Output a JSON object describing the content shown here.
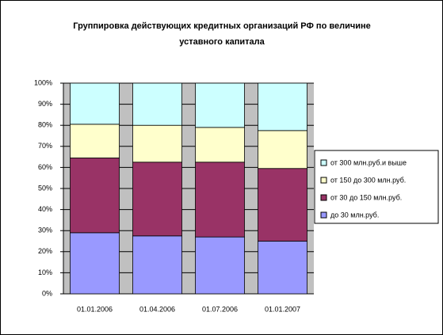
{
  "chart_data": {
    "type": "stacked_bar_100",
    "title": [
      "Группировка действующих кредитных организаций РФ по величине",
      "уставного капитала"
    ],
    "categories": [
      "01.01.2006",
      "01.04.2006",
      "01.07.2006",
      "01.01.2007"
    ],
    "series": [
      {
        "name": "до 30 млн.руб.",
        "color": "#9999ff",
        "values": [
          29,
          27.5,
          27,
          25
        ]
      },
      {
        "name": "от 30 до 150 млн.руб.",
        "color": "#993366",
        "values": [
          35.5,
          35,
          35.5,
          34.5
        ]
      },
      {
        "name": "от 150 до 300 млн.руб.",
        "color": "#ffffcc",
        "values": [
          16,
          17.5,
          16.5,
          18
        ]
      },
      {
        "name": "от 300 млн.руб.и выше",
        "color": "#ccffff",
        "values": [
          19.5,
          20,
          21,
          22.5
        ]
      }
    ],
    "ylim": [
      0,
      100
    ],
    "yticks": [
      {
        "value": 0,
        "label": "0%"
      },
      {
        "value": 10,
        "label": "10%"
      },
      {
        "value": 20,
        "label": "20%"
      },
      {
        "value": 30,
        "label": "30%"
      },
      {
        "value": 40,
        "label": "40%"
      },
      {
        "value": 50,
        "label": "50%"
      },
      {
        "value": 60,
        "label": "60%"
      },
      {
        "value": 70,
        "label": "70%"
      },
      {
        "value": 80,
        "label": "80%"
      },
      {
        "value": 90,
        "label": "90%"
      },
      {
        "value": 100,
        "label": "100%"
      }
    ],
    "grid": true,
    "legend": "right"
  }
}
